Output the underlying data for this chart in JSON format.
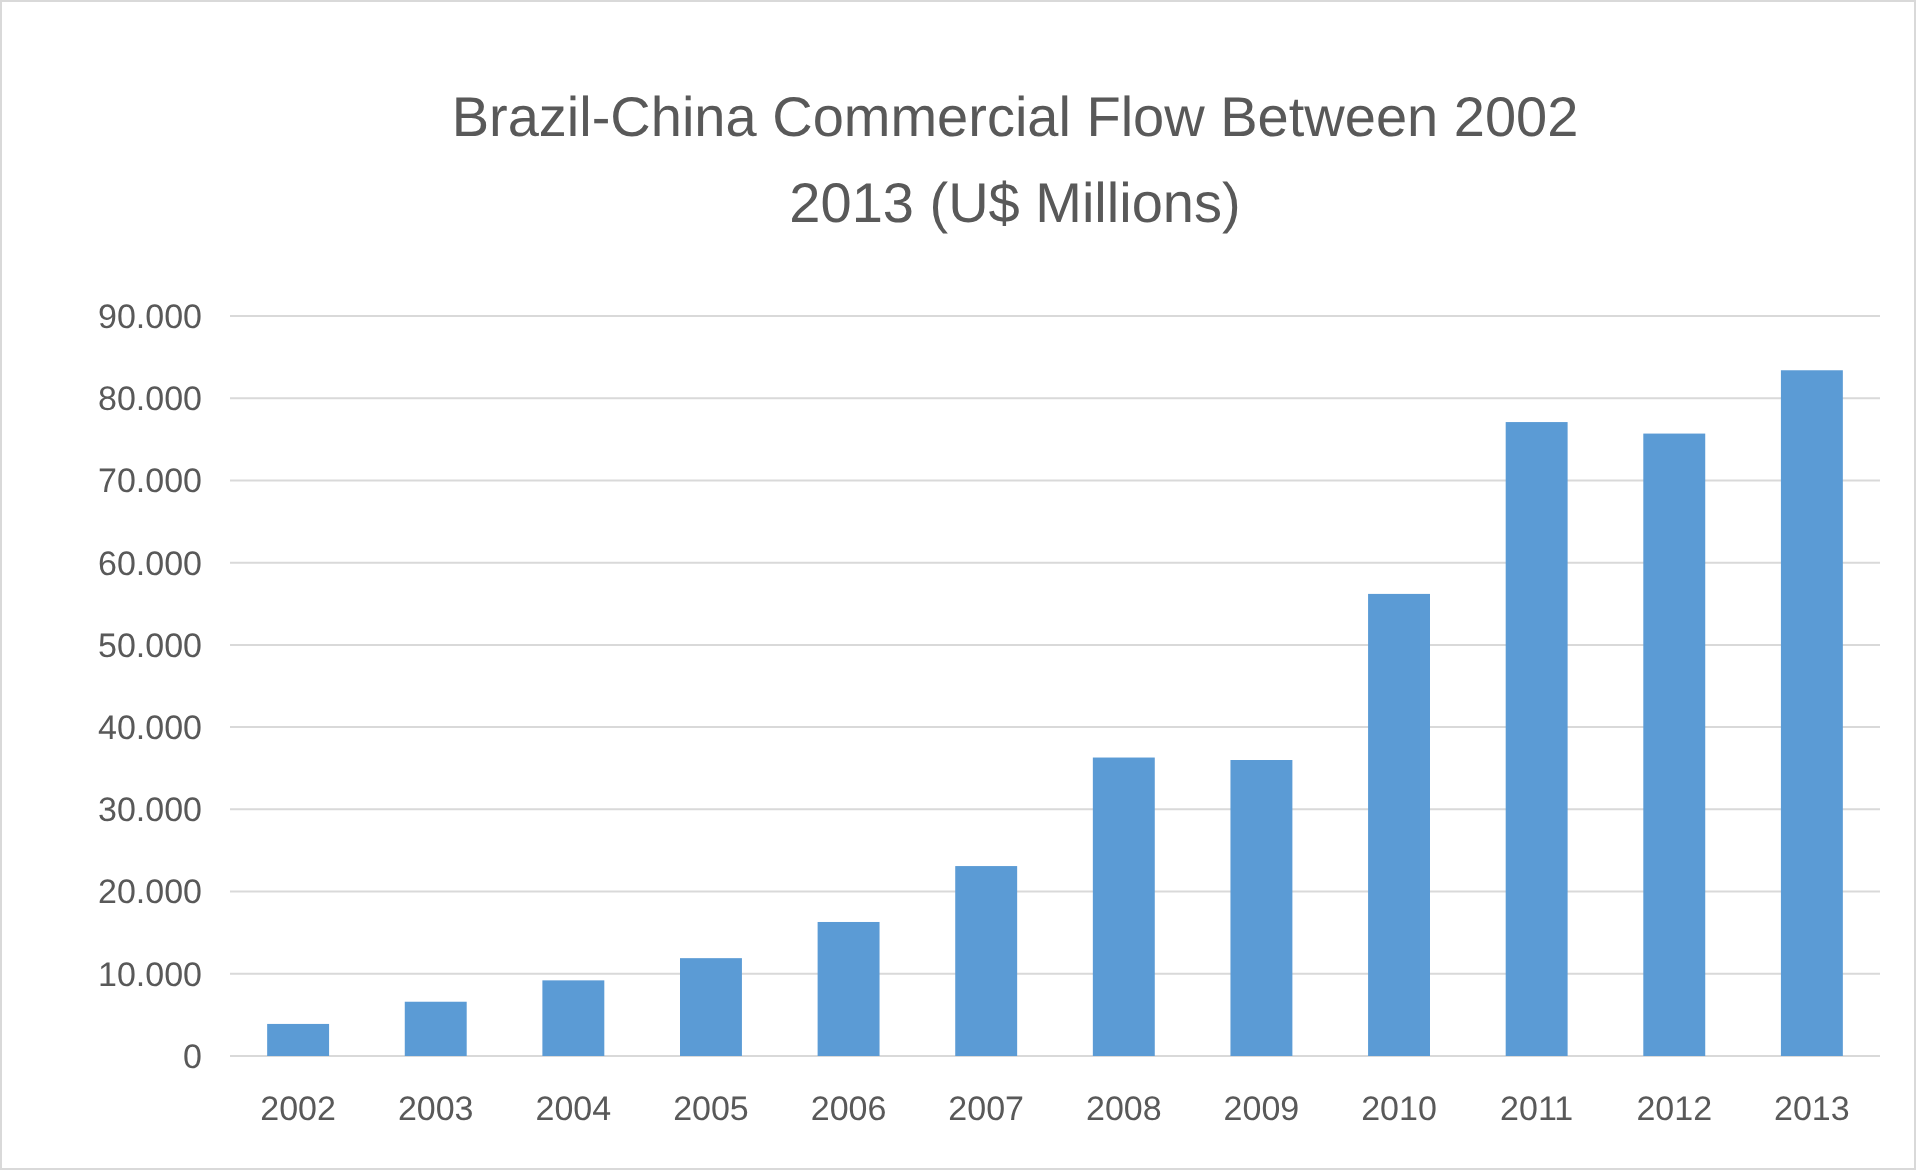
{
  "chart_data": {
    "type": "bar",
    "title": "Brazil-China Commercial Flow Between 2002 2013 (U$ Millions)",
    "categories": [
      "2002",
      "2003",
      "2004",
      "2005",
      "2006",
      "2007",
      "2008",
      "2009",
      "2010",
      "2011",
      "2012",
      "2013"
    ],
    "values": [
      3900,
      6600,
      9200,
      11900,
      16300,
      23100,
      36300,
      36000,
      56200,
      77100,
      75700,
      83400
    ],
    "color": "#5b9bd5",
    "ylim": [
      0,
      90000
    ],
    "yticks": [
      0,
      {
        "value": 10000,
        "label": "10.000"
      },
      {
        "value": 20000,
        "label": "20.000"
      },
      {
        "value": 30000,
        "label": "30.000"
      },
      {
        "value": 40000,
        "label": "40.000"
      },
      {
        "value": 50000,
        "label": "50.000"
      },
      {
        "value": 60000,
        "label": "60.000"
      },
      {
        "value": 70000,
        "label": "70.000"
      },
      {
        "value": 80000,
        "label": "80.000"
      },
      {
        "value": 90000,
        "label": "90.000"
      }
    ],
    "grid": "y"
  }
}
